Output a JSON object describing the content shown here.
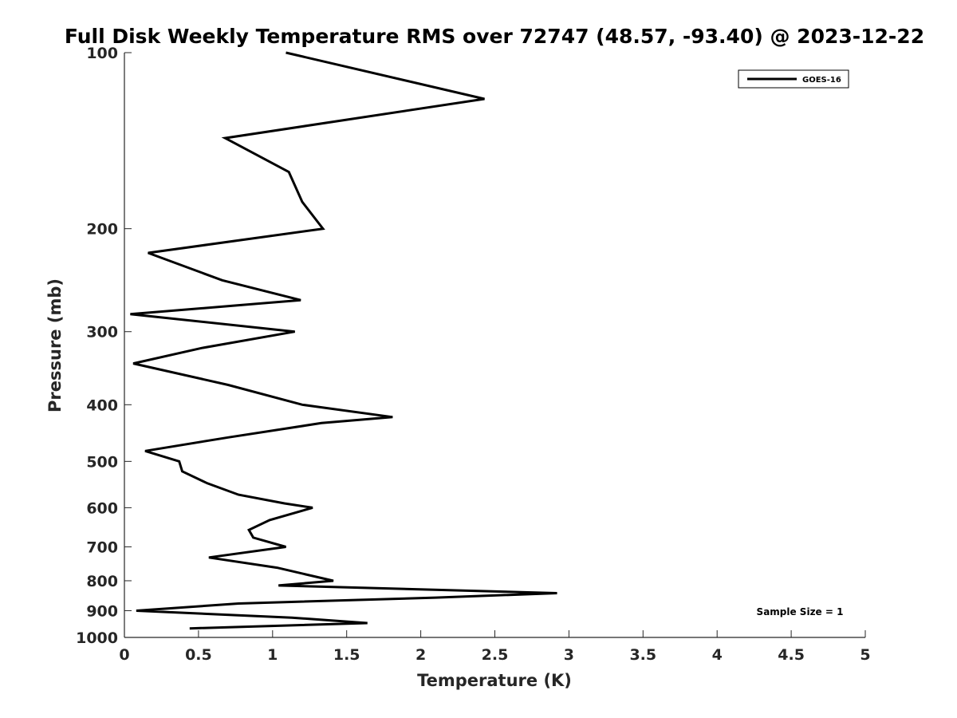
{
  "chart_data": {
    "type": "line",
    "title": "Full Disk Weekly Temperature RMS over 72747 (48.57, -93.40) @ 2023-12-22",
    "xlabel": "Temperature (K)",
    "ylabel": "Pressure (mb)",
    "xlim": [
      0,
      5
    ],
    "ylim": [
      100,
      1000
    ],
    "y_scale": "log",
    "y_reversed": true,
    "x_ticks": [
      "0",
      "0.5",
      "1",
      "1.5",
      "2",
      "2.5",
      "3",
      "3.5",
      "4",
      "4.5",
      "5"
    ],
    "y_ticks": [
      "100",
      "200",
      "300",
      "400",
      "500",
      "600",
      "700",
      "800",
      "900",
      "1000"
    ],
    "grid": false,
    "legend_position": "top-right",
    "series": [
      {
        "name": "GOES-16",
        "color": "#000000",
        "points": [
          {
            "x": 1.09,
            "p": 100
          },
          {
            "x": 2.43,
            "p": 120
          },
          {
            "x": 0.68,
            "p": 140
          },
          {
            "x": 1.11,
            "p": 160
          },
          {
            "x": 1.2,
            "p": 180
          },
          {
            "x": 1.34,
            "p": 200
          },
          {
            "x": 0.16,
            "p": 220
          },
          {
            "x": 0.66,
            "p": 245
          },
          {
            "x": 1.19,
            "p": 265
          },
          {
            "x": 0.04,
            "p": 280
          },
          {
            "x": 1.15,
            "p": 300
          },
          {
            "x": 0.52,
            "p": 320
          },
          {
            "x": 0.06,
            "p": 340
          },
          {
            "x": 0.7,
            "p": 370
          },
          {
            "x": 1.2,
            "p": 400
          },
          {
            "x": 1.81,
            "p": 420
          },
          {
            "x": 1.33,
            "p": 430
          },
          {
            "x": 0.7,
            "p": 455
          },
          {
            "x": 0.14,
            "p": 480
          },
          {
            "x": 0.37,
            "p": 500
          },
          {
            "x": 0.39,
            "p": 520
          },
          {
            "x": 0.56,
            "p": 545
          },
          {
            "x": 0.77,
            "p": 570
          },
          {
            "x": 1.08,
            "p": 590
          },
          {
            "x": 1.27,
            "p": 600
          },
          {
            "x": 0.98,
            "p": 630
          },
          {
            "x": 0.84,
            "p": 655
          },
          {
            "x": 0.87,
            "p": 675
          },
          {
            "x": 1.09,
            "p": 700
          },
          {
            "x": 0.57,
            "p": 730
          },
          {
            "x": 1.03,
            "p": 760
          },
          {
            "x": 1.41,
            "p": 800
          },
          {
            "x": 1.04,
            "p": 815
          },
          {
            "x": 2.92,
            "p": 840
          },
          {
            "x": 2.1,
            "p": 855
          },
          {
            "x": 0.77,
            "p": 875
          },
          {
            "x": 0.08,
            "p": 900
          },
          {
            "x": 1.13,
            "p": 925
          },
          {
            "x": 1.64,
            "p": 945
          },
          {
            "x": 0.44,
            "p": 965
          }
        ]
      }
    ],
    "annotations": [
      "Sample Size = 1"
    ]
  }
}
